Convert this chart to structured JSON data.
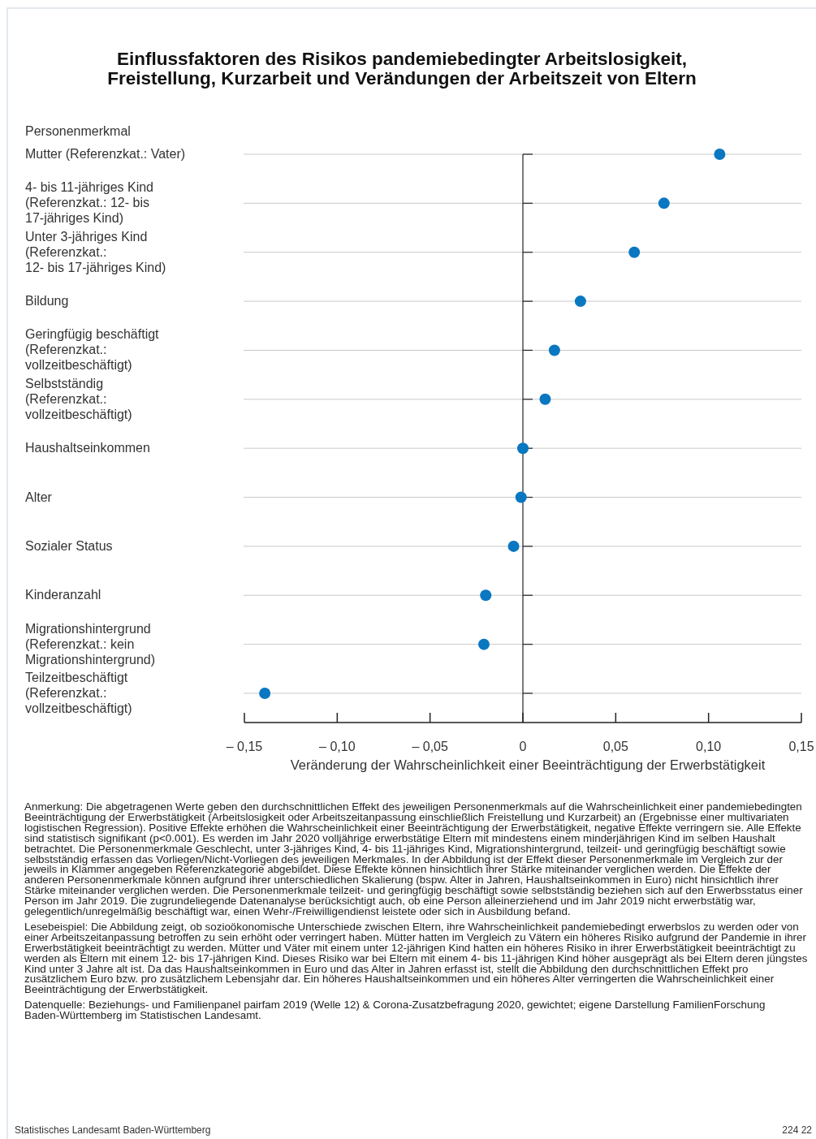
{
  "chart_data": {
    "type": "scatter",
    "title": "Einflussfaktoren des Risikos pandemiebedingter Arbeitslosigkeit,\nFreistellung, Kurzarbeit und Verändungen der Arbeitszeit von Eltern",
    "ylabel": "Personenmerkmal",
    "xlabel": "Veränderung der Wahrscheinlichkeit einer Beeinträchtigung der Erwerbstätigkeit",
    "categories": [
      "Mutter  (Referenzkat.: Vater)",
      "4- bis 11-jähriges Kind\n(Referenzkat.: 12- bis\n17-jähriges Kind)",
      "Unter 3-jähriges Kind\n(Referenzkat.:\n12- bis 17-jähriges Kind)",
      "Bildung",
      "Geringfügig beschäftigt\n(Referenzkat.:\nvollzeitbeschäftigt)",
      "Selbstständig\n(Referenzkat.:\nvollzeitbeschäftigt)",
      "Haushaltseinkommen",
      "Alter",
      "Sozialer Status",
      "Kinderanzahl",
      "Migrationshintergrund\n(Referenzkat.: kein\nMigrationshintergrund)",
      "Teilzeitbeschäftigt\n(Referenzkat.:\nvollzeitbeschäftigt)"
    ],
    "values": [
      0.106,
      0.076,
      0.06,
      0.031,
      0.017,
      0.012,
      0.0,
      -0.001,
      -0.005,
      -0.02,
      -0.021,
      -0.139
    ],
    "color": "#0a77c1",
    "marker": "circle",
    "grid": "y",
    "orientation": "horizontal",
    "xlim": [
      -0.15,
      0.15
    ],
    "xticks": [
      {
        "value": -0.15,
        "label": "– 0,15"
      },
      {
        "value": -0.1,
        "label": "– 0,10"
      },
      {
        "value": -0.05,
        "label": "– 0,05"
      },
      0,
      {
        "value": 0.05,
        "label": "0,05"
      },
      {
        "value": 0.1,
        "label": "0,10"
      },
      {
        "value": 0.15,
        "label": "0,15"
      }
    ],
    "annotations": [
      "Anmerkung: Die abgetragenen Werte geben den durchschnittlichen Effekt des jeweiligen Personenmerkmals auf die Wahrscheinlichkeit einer pandemiebedingten Beeinträchtigung der Erwerbstätigkeit (Arbeitslosigkeit oder Arbeitszeitanpassung einschließlich Freistellung und Kurzarbeit) an (Ergebnisse einer multivariaten logistischen Regression). Positive Effekte erhöhen die Wahrscheinlichkeit einer Beeinträchtigung der Erwerbstätigkeit, negative Effekte verringern sie. Alle Effekte sind statistisch signifikant (p<0.001). Es werden im Jahr 2020 volljährige erwerbstätige Eltern mit mindestens einem minderjährigen Kind im selben Haushalt betrachtet. Die Personenmerkmale Geschlecht, unter 3-jähriges Kind, 4- bis 11-jähriges Kind, Migrationshintergrund, teilzeit- und geringfügig beschäftigt  sowie selbstständig erfassen das Vorliegen/Nicht-Vorliegen des jeweiligen Merkmales. In der Abbildung ist der Effekt dieser Personenmerkmale im Vergleich zur der jeweils in Klammer angegeben Referenzkategorie abgebildet. Diese Effekte können hinsichtlich ihrer Stärke miteinander verglichen werden. Die Effekte der anderen Personenmerkmale können aufgrund ihrer unterschiedlichen Skalierung (bspw. Alter in Jahren, Haushaltseinkommen in Euro) nicht hinsichtlich ihrer Stärke miteinander verglichen werden. Die Personenmerkmale teilzeit- und geringfügig beschäftigt  sowie selbstständig beziehen sich auf den Erwerbsstatus einer Person im Jahr 2019. Die zugrundeliegende Datenanalyse berücksichtigt auch, ob eine Person alleinerziehend und im Jahr 2019 nicht erwerbstätig war, gelegentlich/unregelmäßig beschäftigt war, einen Wehr-/Freiwilligendienst leistete oder sich in Ausbildung befand.",
      "Lesebeispiel: Die Abbildung zeigt, ob sozioökonomische Unterschiede zwischen Eltern, ihre Wahrscheinlichkeit pandemiebedingt erwerbslos zu werden oder von einer Arbeitszeitanpassung betroffen zu sein erhöht oder verringert haben. Mütter hatten im Vergleich zu Vätern ein höheres Risiko aufgrund der Pandemie in ihrer Erwerbstätigkeit beeinträchtigt zu werden. Mütter und Väter mit einem unter 12-jährigen Kind hatten ein höheres Risiko in ihrer Erwerbstätigkeit beeinträchtigt zu werden als Eltern mit einem 12- bis 17-jährigen Kind. Dieses Risiko war bei Eltern mit einem 4- bis 11-jährigen Kind höher ausgeprägt als bei Eltern deren jüngstes Kind unter 3 Jahre alt ist. Da das Haushaltseinkommen in Euro und das Alter in Jahren erfasst ist, stellt die Abbildung den durchschnittlichen Effekt pro zusätzlichem Euro bzw. pro zusätzlichem Lebensjahr dar. Ein höheres Haushaltseinkommen und ein höheres Alter verringerten die Wahrscheinlichkeit einer Beeinträchtigung der Erwerbstätigkeit.",
      "Datenquelle: Beziehungs- und Familienpanel pairfam 2019 (Welle 12) & Corona-Zusatzbefragung 2020, gewichtet; eigene Darstellung FamilienForschung Baden-Württemberg im Statistischen Landesamt.",
      "Statistisches Landesamt Baden-Württemberg",
      "224 22"
    ]
  }
}
